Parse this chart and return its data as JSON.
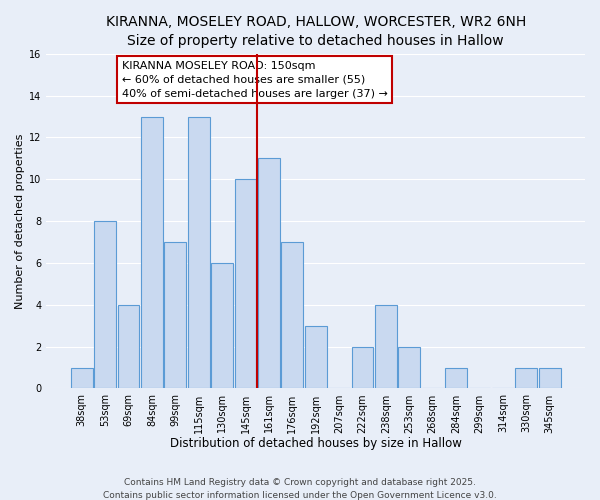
{
  "title": "KIRANNA, MOSELEY ROAD, HALLOW, WORCESTER, WR2 6NH",
  "subtitle": "Size of property relative to detached houses in Hallow",
  "xlabel": "Distribution of detached houses by size in Hallow",
  "ylabel": "Number of detached properties",
  "bar_labels": [
    "38sqm",
    "53sqm",
    "69sqm",
    "84sqm",
    "99sqm",
    "115sqm",
    "130sqm",
    "145sqm",
    "161sqm",
    "176sqm",
    "192sqm",
    "207sqm",
    "222sqm",
    "238sqm",
    "253sqm",
    "268sqm",
    "284sqm",
    "299sqm",
    "314sqm",
    "330sqm",
    "345sqm"
  ],
  "bar_values": [
    1,
    8,
    4,
    13,
    7,
    13,
    6,
    10,
    11,
    7,
    3,
    0,
    2,
    4,
    2,
    0,
    1,
    0,
    0,
    1,
    1
  ],
  "bar_color": "#c9d9f0",
  "bar_edge_color": "#5b9bd5",
  "vline_color": "#c00000",
  "annotation_box_text": "KIRANNA MOSELEY ROAD: 150sqm\n← 60% of detached houses are smaller (55)\n40% of semi-detached houses are larger (37) →",
  "annotation_box_edge_color": "#c00000",
  "ylim": [
    0,
    16
  ],
  "yticks": [
    0,
    2,
    4,
    6,
    8,
    10,
    12,
    14,
    16
  ],
  "background_color": "#e8eef8",
  "grid_color": "#ffffff",
  "footer_line1": "Contains HM Land Registry data © Crown copyright and database right 2025.",
  "footer_line2": "Contains public sector information licensed under the Open Government Licence v3.0.",
  "title_fontsize": 10,
  "subtitle_fontsize": 9,
  "xlabel_fontsize": 8.5,
  "ylabel_fontsize": 8,
  "tick_fontsize": 7,
  "annotation_fontsize": 8,
  "footer_fontsize": 6.5
}
